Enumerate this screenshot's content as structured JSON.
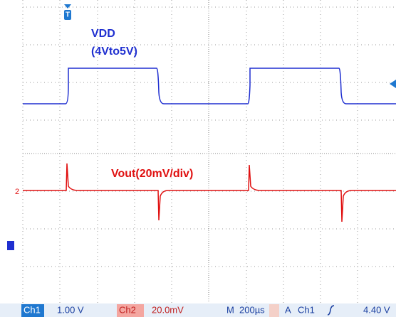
{
  "labels": {
    "ch1_name": "VDD",
    "ch1_range": "(4Vto5V)",
    "ch2_name": "Vout(20mV/div)"
  },
  "status_bar": {
    "ch1": "Ch1",
    "ch1_scale": "1.00 V",
    "ch2": "Ch2",
    "ch2_scale": "20.0mV",
    "m": "M",
    "timebase": "200µs",
    "trigger_mode": "A",
    "trigger_source": "Ch1",
    "trigger_level": "4.40 V"
  }
}
